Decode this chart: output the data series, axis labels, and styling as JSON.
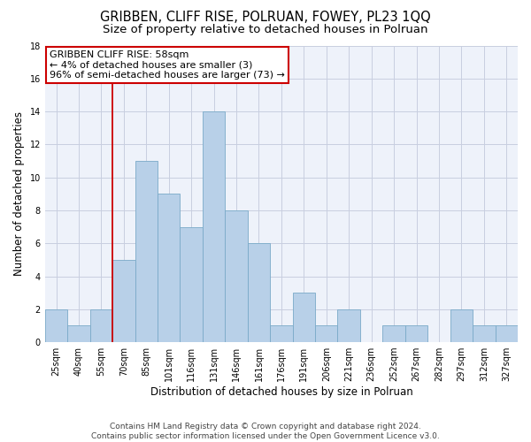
{
  "title": "GRIBBEN, CLIFF RISE, POLRUAN, FOWEY, PL23 1QQ",
  "subtitle": "Size of property relative to detached houses in Polruan",
  "xlabel": "Distribution of detached houses by size in Polruan",
  "ylabel": "Number of detached properties",
  "categories": [
    "25sqm",
    "40sqm",
    "55sqm",
    "70sqm",
    "85sqm",
    "101sqm",
    "116sqm",
    "131sqm",
    "146sqm",
    "161sqm",
    "176sqm",
    "191sqm",
    "206sqm",
    "221sqm",
    "236sqm",
    "252sqm",
    "267sqm",
    "282sqm",
    "297sqm",
    "312sqm",
    "327sqm"
  ],
  "values": [
    2,
    1,
    2,
    5,
    11,
    9,
    7,
    14,
    8,
    6,
    1,
    3,
    1,
    2,
    0,
    1,
    1,
    0,
    2,
    1,
    1
  ],
  "bar_color": "#b8d0e8",
  "bar_edge_color": "#7aaac8",
  "vline_x": 2.5,
  "vline_color": "#cc0000",
  "annotation_text": "GRIBBEN CLIFF RISE: 58sqm\n← 4% of detached houses are smaller (3)\n96% of semi-detached houses are larger (73) →",
  "annotation_box_color": "#cc0000",
  "ylim": [
    0,
    18
  ],
  "yticks": [
    0,
    2,
    4,
    6,
    8,
    10,
    12,
    14,
    16,
    18
  ],
  "background_color": "#eef2fa",
  "grid_color": "#c8cee0",
  "footer_text": "Contains HM Land Registry data © Crown copyright and database right 2024.\nContains public sector information licensed under the Open Government Licence v3.0.",
  "title_fontsize": 10.5,
  "subtitle_fontsize": 9.5,
  "xlabel_fontsize": 8.5,
  "ylabel_fontsize": 8.5,
  "tick_fontsize": 7,
  "annotation_fontsize": 8,
  "footer_fontsize": 6.5
}
